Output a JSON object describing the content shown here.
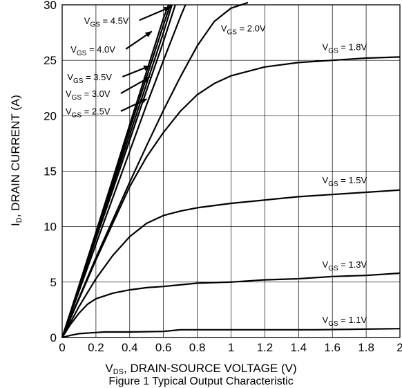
{
  "chart_data": {
    "type": "line",
    "xlabel_main": "V",
    "xlabel_sub": "DS",
    "xlabel_rest": ", DRAIN-SOURCE VOLTAGE (V)",
    "ylabel_main": "I",
    "ylabel_sub": "D",
    "ylabel_rest": ", DRAIN CURRENT (A)",
    "caption": "Figure 1 Typical Output Characteristic",
    "xlim": [
      0,
      2
    ],
    "ylim": [
      0,
      30
    ],
    "x_ticks": [
      "0",
      "0.2",
      "0.4",
      "0.6",
      "0.8",
      "1",
      "1.2",
      "1.4",
      "1.6",
      "1.8",
      "2"
    ],
    "y_ticks": [
      "0",
      "5",
      "10",
      "15",
      "20",
      "25",
      "30"
    ],
    "grid": true,
    "label_prefix": "V",
    "label_sub": "GS",
    "series": [
      {
        "name": "= 4.5V",
        "x": [
          0,
          0.1,
          0.2,
          0.3,
          0.4,
          0.5,
          0.6,
          0.63
        ],
        "y": [
          0,
          4.7,
          9.5,
          14.3,
          19.2,
          24.0,
          28.8,
          30
        ]
      },
      {
        "name": "= 4.0V",
        "x": [
          0,
          0.1,
          0.2,
          0.3,
          0.4,
          0.5,
          0.6,
          0.64
        ],
        "y": [
          0,
          4.6,
          9.3,
          14.0,
          18.8,
          23.5,
          28.2,
          30
        ]
      },
      {
        "name": "= 3.5V",
        "x": [
          0,
          0.1,
          0.2,
          0.3,
          0.4,
          0.5,
          0.6,
          0.65
        ],
        "y": [
          0,
          4.5,
          9.1,
          13.7,
          18.3,
          22.9,
          27.5,
          30
        ]
      },
      {
        "name": "= 3.0V",
        "x": [
          0,
          0.1,
          0.2,
          0.3,
          0.4,
          0.5,
          0.6,
          0.67
        ],
        "y": [
          0,
          4.4,
          8.9,
          13.3,
          17.8,
          22.3,
          26.7,
          30
        ]
      },
      {
        "name": "= 2.5V",
        "x": [
          0,
          0.1,
          0.2,
          0.3,
          0.4,
          0.5,
          0.6,
          0.7,
          0.73
        ],
        "y": [
          0,
          4.2,
          8.4,
          12.6,
          16.8,
          21.0,
          25.0,
          28.9,
          30
        ]
      },
      {
        "name": "= 2.0V",
        "x": [
          0,
          0.1,
          0.2,
          0.3,
          0.4,
          0.5,
          0.6,
          0.7,
          0.8,
          0.9,
          1.0,
          1.1
        ],
        "y": [
          0,
          3.6,
          7.2,
          10.6,
          14.0,
          17.3,
          20.5,
          23.5,
          26.3,
          28.5,
          29.7,
          30.2
        ]
      },
      {
        "name": "= 1.8V",
        "x": [
          0,
          0.1,
          0.2,
          0.3,
          0.4,
          0.5,
          0.6,
          0.7,
          0.8,
          0.9,
          1.0,
          1.2,
          1.4,
          1.6,
          1.8,
          2.0
        ],
        "y": [
          0,
          3.5,
          7.0,
          10.3,
          13.6,
          16.3,
          18.5,
          20.4,
          21.9,
          22.9,
          23.6,
          24.4,
          24.8,
          25.0,
          25.2,
          25.3
        ]
      },
      {
        "name": "= 1.5V",
        "x": [
          0,
          0.1,
          0.2,
          0.3,
          0.4,
          0.5,
          0.6,
          0.7,
          0.8,
          1.0,
          1.2,
          1.4,
          1.6,
          1.8,
          2.0
        ],
        "y": [
          0,
          2.8,
          5.3,
          7.4,
          9.1,
          10.3,
          11.0,
          11.4,
          11.7,
          12.1,
          12.4,
          12.7,
          12.9,
          13.1,
          13.3
        ]
      },
      {
        "name": "= 1.3V",
        "x": [
          0,
          0.05,
          0.1,
          0.15,
          0.2,
          0.3,
          0.4,
          0.5,
          0.6,
          0.8,
          1.0,
          1.2,
          1.4,
          1.6,
          1.8,
          2.0
        ],
        "y": [
          0,
          1.2,
          2.2,
          3.0,
          3.5,
          4.0,
          4.3,
          4.5,
          4.6,
          4.9,
          5.0,
          5.2,
          5.3,
          5.5,
          5.6,
          5.8
        ]
      },
      {
        "name": "= 1.1V",
        "x": [
          0,
          0.05,
          0.1,
          0.2,
          0.25,
          0.4,
          0.6,
          0.7,
          0.8,
          1.0,
          1.5,
          2.0
        ],
        "y": [
          0,
          0.2,
          0.35,
          0.45,
          0.5,
          0.5,
          0.55,
          0.7,
          0.7,
          0.7,
          0.7,
          0.8
        ]
      }
    ],
    "annotations": [
      {
        "series": 0,
        "label_x": 0.13,
        "label_y": 28.3,
        "arrow_to_x": 0.64,
        "arrow_to_y": 29.8
      },
      {
        "series": 1,
        "label_x": 0.05,
        "label_y": 25.7,
        "arrow_to_x": 0.53,
        "arrow_to_y": 27.6
      },
      {
        "series": 2,
        "label_x": 0.03,
        "label_y": 23.2,
        "arrow_to_x": 0.52,
        "arrow_to_y": 24.5
      },
      {
        "series": 3,
        "label_x": 0.02,
        "label_y": 21.7,
        "arrow_to_x": 0.52,
        "arrow_to_y": 23.5
      },
      {
        "series": 4,
        "label_x": 0.02,
        "label_y": 20.1,
        "arrow_to_x": 0.5,
        "arrow_to_y": 21.5
      },
      {
        "series": 5,
        "label_x": 0.94,
        "label_y": 27.6
      },
      {
        "series": 6,
        "label_x": 1.54,
        "label_y": 25.9
      },
      {
        "series": 7,
        "label_x": 1.54,
        "label_y": 13.9
      },
      {
        "series": 8,
        "label_x": 1.54,
        "label_y": 6.3
      },
      {
        "series": 9,
        "label_x": 1.54,
        "label_y": 1.3
      }
    ]
  }
}
